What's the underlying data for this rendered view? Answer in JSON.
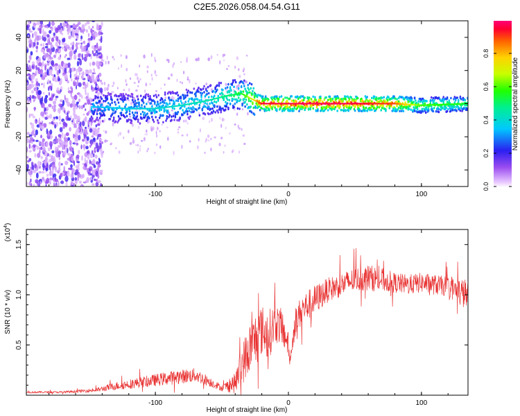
{
  "figure": {
    "title": "C2E5.2026.058.04.54.G11"
  },
  "chart_data": [
    {
      "type": "heatmap",
      "title": "C2E5.2026.058.04.54.G11",
      "xlabel": "Height of straight line (km)",
      "ylabel": "Frequency (Hz)",
      "xlim": [
        -197,
        135
      ],
      "ylim": [
        -50,
        50
      ],
      "xticks": [
        -100,
        0,
        100
      ],
      "yticks": [
        -40,
        -20,
        0,
        20,
        40
      ],
      "colorbar": {
        "label": "Normalized spectral amplitude",
        "range": [
          0,
          1
        ],
        "ticks": [
          "0.0",
          "0.2",
          "0.4",
          "0.6",
          "0.8"
        ],
        "tick_values": [
          0.0,
          0.2,
          0.4,
          0.6,
          0.8
        ]
      },
      "ridge": {
        "description": "dominant frequency track",
        "x": [
          -145,
          -120,
          -100,
          -80,
          -60,
          -45,
          -35,
          -28,
          -20,
          0,
          40,
          80,
          100,
          135
        ],
        "y": [
          -2,
          -3,
          -3,
          -1,
          2,
          5,
          6,
          3,
          0,
          0,
          0,
          0,
          -1,
          0
        ],
        "amplitude": [
          0.35,
          0.38,
          0.4,
          0.42,
          0.45,
          0.5,
          0.55,
          0.7,
          0.95,
          0.97,
          0.98,
          0.9,
          0.6,
          0.55
        ]
      }
    },
    {
      "type": "line",
      "xlabel": "Height of straight line (km)",
      "ylabel": "SNR (10 * v/v)",
      "scale_label": "(x10",
      "scale_exponent": "4",
      "xlim": [
        -197,
        135
      ],
      "ylim": [
        0,
        1.65
      ],
      "xticks": [
        -100,
        0,
        100
      ],
      "yticks": [
        0.5,
        1.0,
        1.5
      ],
      "ytick_labels": [
        "0.5",
        "1.0",
        "1.5"
      ],
      "series": [
        {
          "name": "SNR",
          "color": "#e83030",
          "x": [
            -197,
            -170,
            -145,
            -130,
            -115,
            -100,
            -85,
            -70,
            -60,
            -50,
            -40,
            -35,
            -30,
            -25,
            -20,
            -15,
            -10,
            -5,
            0,
            1,
            5,
            10,
            20,
            30,
            40,
            50,
            60,
            70,
            80,
            90,
            100,
            110,
            120,
            125,
            130,
            135
          ],
          "y": [
            0.03,
            0.03,
            0.05,
            0.09,
            0.12,
            0.15,
            0.18,
            0.2,
            0.14,
            0.07,
            0.12,
            0.3,
            0.45,
            0.55,
            0.65,
            0.6,
            0.72,
            0.68,
            0.5,
            0.32,
            0.72,
            0.85,
            0.95,
            1.05,
            1.1,
            1.15,
            1.17,
            1.15,
            1.12,
            1.1,
            1.12,
            1.1,
            1.08,
            1.05,
            1.02,
            1.0
          ],
          "noise": [
            0.01,
            0.01,
            0.02,
            0.04,
            0.05,
            0.06,
            0.07,
            0.07,
            0.05,
            0.03,
            0.1,
            0.2,
            0.25,
            0.28,
            0.25,
            0.25,
            0.2,
            0.18,
            0.12,
            0.02,
            0.15,
            0.15,
            0.15,
            0.12,
            0.12,
            0.12,
            0.13,
            0.12,
            0.1,
            0.1,
            0.1,
            0.1,
            0.1,
            0.12,
            0.15,
            0.15
          ]
        }
      ]
    }
  ]
}
